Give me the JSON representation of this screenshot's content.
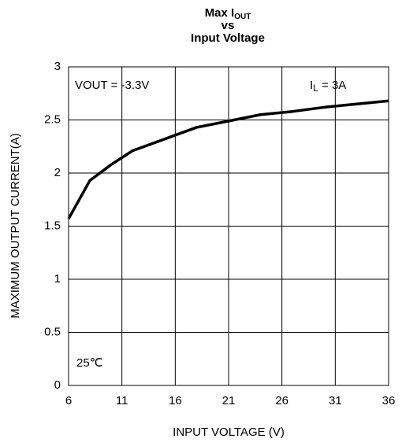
{
  "chart_data": {
    "type": "line",
    "title": [
      "Max I",
      "vs",
      "Input Voltage"
    ],
    "title_subscript": "OUT",
    "x_label": "INPUT VOLTAGE  (V)",
    "y_label": "MAXIMUM OUTPUT CURRENT(A)",
    "x": [
      6,
      8,
      10,
      12,
      15,
      18,
      21,
      24,
      27,
      30,
      33,
      36
    ],
    "series": [
      {
        "color": "#000000",
        "values": [
          1.57,
          1.93,
          2.08,
          2.21,
          2.32,
          2.43,
          2.49,
          2.55,
          2.58,
          2.62,
          2.65,
          2.68
        ]
      }
    ],
    "xlim": [
      6,
      36
    ],
    "xticks": [
      6,
      11,
      16,
      21,
      26,
      31,
      36
    ],
    "ylim": [
      0,
      3
    ],
    "yticks": [
      0,
      0.5,
      1,
      1.5,
      2,
      2.5,
      3
    ],
    "grid": true,
    "annotations": [
      {
        "text": "VOUT = -3.3V"
      },
      {
        "text": "I",
        "subscript": "L",
        "suffix": " = 3A"
      },
      {
        "text": "25℃"
      }
    ]
  }
}
